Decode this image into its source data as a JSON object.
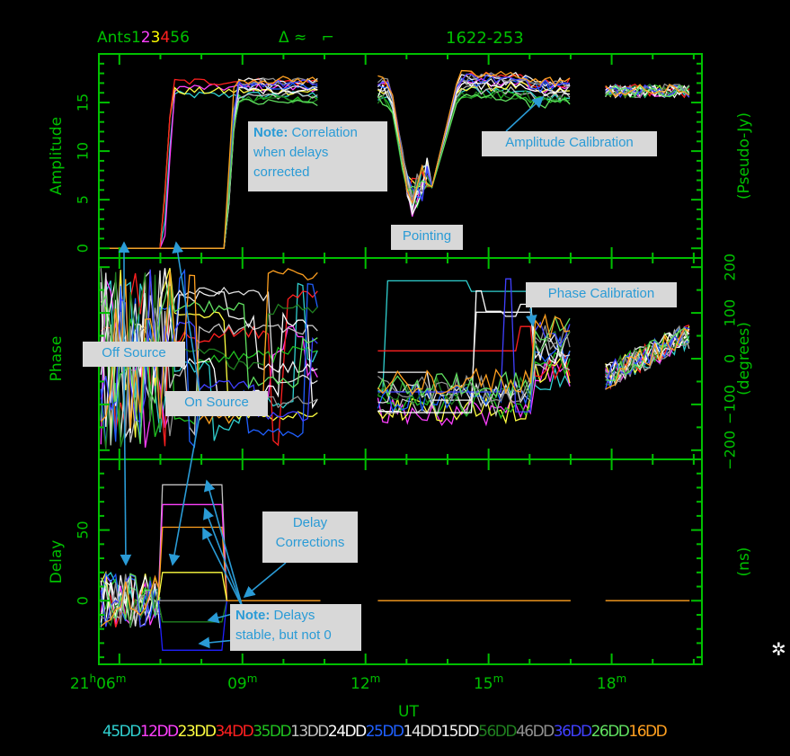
{
  "header": {
    "ants_prefix": "Ants",
    "ants_digits": [
      {
        "d": "1",
        "color": "#00c000"
      },
      {
        "d": "2",
        "color": "#ff40ff"
      },
      {
        "d": "3",
        "color": "#ffff00"
      },
      {
        "d": "4",
        "color": "#ff2020"
      },
      {
        "d": "5",
        "color": "#00c000"
      },
      {
        "d": "6",
        "color": "#00c000"
      }
    ],
    "symbols": "Δ ≈   ⌐",
    "source": "1622-253"
  },
  "panels": {
    "amplitude": {
      "ylabel": "Amplitude",
      "ylabel_right": "(Pseudo-Jy)",
      "ticks": [
        "0",
        "5",
        "10",
        "15"
      ]
    },
    "phase": {
      "ylabel": "Phase",
      "ylabel_right": "(degrees)",
      "ticks": [
        "−200",
        "−100",
        "0",
        "100",
        "200"
      ]
    },
    "delay": {
      "ylabel": "Delay",
      "ylabel_right": "(ns)",
      "ticks": [
        "0",
        "50"
      ]
    }
  },
  "xaxis": {
    "label": "UT",
    "ticks": [
      {
        "main": "21",
        "sup1": "h",
        "mid": "06",
        "sup2": "m"
      },
      {
        "main": "",
        "sup1": "",
        "mid": "09",
        "sup2": "m"
      },
      {
        "main": "",
        "sup1": "",
        "mid": "12",
        "sup2": "m"
      },
      {
        "main": "",
        "sup1": "",
        "mid": "15",
        "sup2": "m"
      },
      {
        "main": "",
        "sup1": "",
        "mid": "18",
        "sup2": "m"
      }
    ]
  },
  "legend": [
    {
      "label": "45DD",
      "color": "#30d0d0"
    },
    {
      "label": "12DD",
      "color": "#ff40ff"
    },
    {
      "label": "23DD",
      "color": "#ffff40"
    },
    {
      "label": "34DD",
      "color": "#ff2020"
    },
    {
      "label": "35DD",
      "color": "#20c020"
    },
    {
      "label": "13DD",
      "color": "#c0c0c0"
    },
    {
      "label": "24DD",
      "color": "#ffffff"
    },
    {
      "label": "25DD",
      "color": "#2060ff"
    },
    {
      "label": "14DD",
      "color": "#e0e0e0"
    },
    {
      "label": "15DD",
      "color": "#f0f0f0"
    },
    {
      "label": "56DD",
      "color": "#208020"
    },
    {
      "label": "46DD",
      "color": "#909090"
    },
    {
      "label": "36DD",
      "color": "#4040ff"
    },
    {
      "label": "26DD",
      "color": "#60e060"
    },
    {
      "label": "16DD",
      "color": "#ffa020"
    }
  ],
  "annotations": {
    "correlation": {
      "bold": "Note:",
      "text": " Correlation when delays corrected"
    },
    "amp_cal": "Amplitude Calibration",
    "pointing": "Pointing",
    "phase_cal": "Phase Calibration",
    "off_source": "Off Source",
    "on_source": "On Source",
    "delay_corr": "Delay Corrections",
    "delays_stable": {
      "bold": "Note:",
      "text": " Delays stable, but not 0"
    }
  },
  "chart_data": {
    "type": "line",
    "xlabel": "UT",
    "x_range_minutes": [
      5.5,
      20.2
    ],
    "panels": [
      {
        "name": "Amplitude",
        "unit": "(Pseudo-Jy)",
        "ylim": [
          -1,
          20
        ]
      },
      {
        "name": "Phase",
        "unit": "(degrees)",
        "ylim": [
          -220,
          220
        ]
      },
      {
        "name": "Delay",
        "unit": "(ns)",
        "ylim": [
          -45,
          100
        ]
      }
    ],
    "delay_corrections_ns": [
      82,
      68,
      52,
      20,
      0,
      -15,
      -35
    ],
    "amplitude_levels": {
      "off_source": 0,
      "on_source": 17,
      "pointing_min": 2,
      "after_calibration": 16
    }
  }
}
